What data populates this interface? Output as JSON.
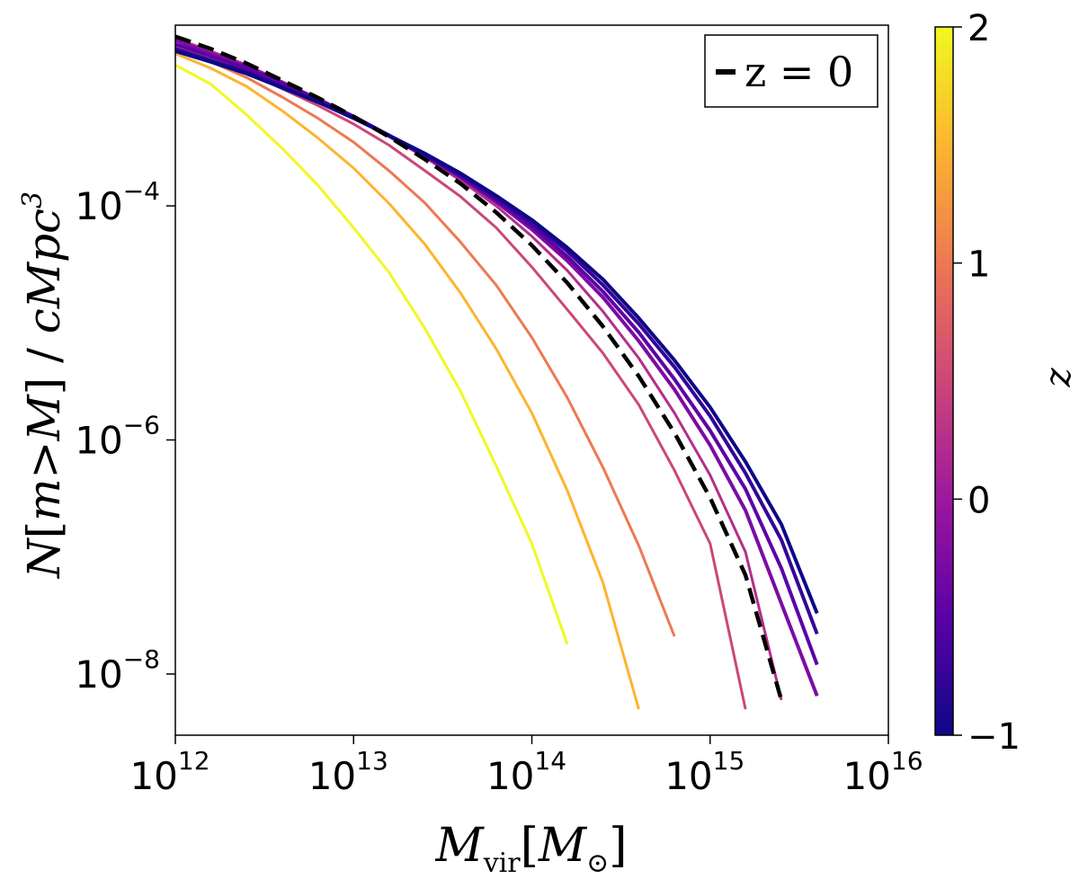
{
  "chart_data": {
    "type": "line",
    "xscale": "log",
    "yscale": "log",
    "xlim": [
      1000000000000.0,
      1e+16
    ],
    "ylim": [
      3e-09,
      0.0035
    ],
    "xlabel": "M_vir[M_⊙]",
    "ylabel": "N[m>M] / cMpc^3",
    "x_ticks": [
      {
        "value": 1000000000000.0,
        "base": "10",
        "exp": "12"
      },
      {
        "value": 10000000000000.0,
        "base": "10",
        "exp": "13"
      },
      {
        "value": 100000000000000.0,
        "base": "10",
        "exp": "14"
      },
      {
        "value": 1000000000000000.0,
        "base": "10",
        "exp": "15"
      },
      {
        "value": 1e+16,
        "base": "10",
        "exp": "16"
      }
    ],
    "y_ticks": [
      {
        "value": 0.0001,
        "base": "10",
        "exp": "−4"
      },
      {
        "value": 1e-06,
        "base": "10",
        "exp": "−6"
      },
      {
        "value": 1e-08,
        "base": "10",
        "exp": "−8"
      }
    ],
    "legend": {
      "label": "z = 0",
      "location": "top-right",
      "style": "dashed-black"
    },
    "colorbar": {
      "label": "z",
      "min": -1,
      "max": 2,
      "ticks": [
        {
          "value": 2,
          "label": "2"
        },
        {
          "value": 1,
          "label": "1"
        },
        {
          "value": 0,
          "label": "0"
        },
        {
          "value": -1,
          "label": "−1"
        }
      ],
      "colormap": [
        "#0d0887",
        "#5c01a6",
        "#9c179e",
        "#cc4778",
        "#ed7953",
        "#fdb42f",
        "#f0f921"
      ]
    },
    "series": [
      {
        "name": "z=2.0",
        "z": 2.0,
        "x": [
          1000000000000.0,
          1580000000000.0,
          2510000000000.0,
          3980000000000.0,
          6310000000000.0,
          10000000000000.0,
          15800000000000.0,
          25100000000000.0,
          39800000000000.0,
          63100000000000.0,
          100000000000000.0,
          158000000000000.0
        ],
        "y": [
          0.0016,
          0.0011,
          0.0006,
          0.00031,
          0.00015,
          6.5e-05,
          2.7e-05,
          9e-06,
          2.6e-06,
          6e-07,
          1.3e-07,
          1.8e-08
        ]
      },
      {
        "name": "z=1.5",
        "z": 1.5,
        "x": [
          1000000000000.0,
          1580000000000.0,
          2510000000000.0,
          3980000000000.0,
          6310000000000.0,
          10000000000000.0,
          15800000000000.0,
          25100000000000.0,
          39800000000000.0,
          63100000000000.0,
          100000000000000.0,
          158000000000000.0,
          251000000000000.0,
          398000000000000.0
        ],
        "y": [
          0.002,
          0.0015,
          0.00105,
          0.00065,
          0.00038,
          0.00021,
          0.000105,
          4.7e-05,
          1.8e-05,
          6e-06,
          1.7e-06,
          3.7e-07,
          6e-08,
          5e-09
        ]
      },
      {
        "name": "z=1.0",
        "z": 1.0,
        "x": [
          1000000000000.0,
          1580000000000.0,
          2510000000000.0,
          3980000000000.0,
          6310000000000.0,
          10000000000000.0,
          15800000000000.0,
          25100000000000.0,
          39800000000000.0,
          63100000000000.0,
          100000000000000.0,
          158000000000000.0,
          251000000000000.0,
          398000000000000.0,
          631000000000000.0
        ],
        "y": [
          0.0022,
          0.0017,
          0.00125,
          0.00085,
          0.00056,
          0.00035,
          0.0002,
          0.000106,
          4.9e-05,
          2.1e-05,
          7.5e-06,
          2.3e-06,
          5.8e-07,
          1.25e-07,
          2.1e-08
        ]
      },
      {
        "name": "z=0.5",
        "z": 0.5,
        "x": [
          1000000000000.0,
          1580000000000.0,
          2510000000000.0,
          3980000000000.0,
          6310000000000.0,
          10000000000000.0,
          15800000000000.0,
          25100000000000.0,
          39800000000000.0,
          63100000000000.0,
          100000000000000.0,
          158000000000000.0,
          251000000000000.0,
          398000000000000.0,
          631000000000000.0,
          1000000000000000.0,
          1580000000000000.0
        ],
        "y": [
          0.0023,
          0.0018,
          0.0014,
          0.001,
          0.00072,
          0.0005,
          0.00033,
          0.0002,
          0.00012,
          6.5e-05,
          3e-05,
          1.3e-05,
          5.5e-06,
          2e-06,
          5.5e-07,
          1.3e-07,
          5e-09
        ]
      },
      {
        "name": "z=0.25",
        "z": 0.25,
        "x": [
          1000000000000.0,
          1580000000000.0,
          2510000000000.0,
          3980000000000.0,
          6310000000000.0,
          10000000000000.0,
          15800000000000.0,
          25100000000000.0,
          39800000000000.0,
          63100000000000.0,
          100000000000000.0,
          158000000000000.0,
          251000000000000.0,
          398000000000000.0,
          631000000000000.0,
          1000000000000000.0,
          1580000000000000.0,
          2510000000000000.0
        ],
        "y": [
          0.0027,
          0.0021,
          0.0016,
          0.00115,
          0.00082,
          0.00057,
          0.00039,
          0.00026,
          0.000165,
          0.0001,
          5.5e-05,
          2.8e-05,
          1.25e-05,
          5e-06,
          1.7e-06,
          5e-07,
          1.1e-07,
          6e-09
        ]
      },
      {
        "name": "z=-0.25",
        "z": -0.25,
        "x": [
          1000000000000.0,
          1580000000000.0,
          2510000000000.0,
          3980000000000.0,
          6310000000000.0,
          10000000000000.0,
          15800000000000.0,
          25100000000000.0,
          39800000000000.0,
          63100000000000.0,
          100000000000000.0,
          158000000000000.0,
          251000000000000.0,
          398000000000000.0,
          631000000000000.0,
          1000000000000000.0,
          1580000000000000.0,
          2510000000000000.0,
          3980000000000000.0
        ],
        "y": [
          0.0026,
          0.002,
          0.00155,
          0.00113,
          0.00082,
          0.00058,
          0.0004,
          0.00027,
          0.000175,
          0.000108,
          6.3e-05,
          3.4e-05,
          1.65e-05,
          7e-06,
          2.7e-06,
          9e-07,
          2.5e-07,
          4e-08,
          6.5e-09
        ]
      },
      {
        "name": "z=-0.5",
        "z": -0.5,
        "x": [
          1000000000000.0,
          1580000000000.0,
          2510000000000.0,
          3980000000000.0,
          6310000000000.0,
          10000000000000.0,
          15800000000000.0,
          25100000000000.0,
          39800000000000.0,
          63100000000000.0,
          100000000000000.0,
          158000000000000.0,
          251000000000000.0,
          398000000000000.0,
          631000000000000.0,
          1000000000000000.0,
          1580000000000000.0,
          2510000000000000.0,
          3980000000000000.0
        ],
        "y": [
          0.0024,
          0.0019,
          0.0015,
          0.0011,
          0.00081,
          0.00058,
          0.0004,
          0.00027,
          0.00018,
          0.000112,
          6.7e-05,
          3.7e-05,
          1.85e-05,
          8.3e-06,
          3.3e-06,
          1.2e-06,
          3.8e-07,
          8e-08,
          1.2e-08
        ]
      },
      {
        "name": "z=-0.75",
        "z": -0.75,
        "x": [
          1000000000000.0,
          1580000000000.0,
          2510000000000.0,
          3980000000000.0,
          6310000000000.0,
          10000000000000.0,
          15800000000000.0,
          25100000000000.0,
          39800000000000.0,
          63100000000000.0,
          100000000000000.0,
          158000000000000.0,
          251000000000000.0,
          398000000000000.0,
          631000000000000.0,
          1000000000000000.0,
          1580000000000000.0,
          2510000000000000.0,
          3980000000000000.0
        ],
        "y": [
          0.0022,
          0.00175,
          0.0014,
          0.00105,
          0.00078,
          0.00057,
          0.0004,
          0.00027,
          0.000185,
          0.000117,
          7.2e-05,
          4.1e-05,
          2.1e-05,
          9.8e-06,
          4.2e-06,
          1.6e-06,
          5.2e-07,
          1.4e-07,
          2.2e-08
        ]
      },
      {
        "name": "z=-1.0",
        "z": -1.0,
        "x": [
          1000000000000.0,
          1580000000000.0,
          2510000000000.0,
          3980000000000.0,
          6310000000000.0,
          10000000000000.0,
          15800000000000.0,
          25100000000000.0,
          39800000000000.0,
          63100000000000.0,
          100000000000000.0,
          158000000000000.0,
          251000000000000.0,
          398000000000000.0,
          631000000000000.0,
          1000000000000000.0,
          1580000000000000.0,
          2510000000000000.0,
          3980000000000000.0
        ],
        "y": [
          0.0021,
          0.0017,
          0.00135,
          0.00102,
          0.00077,
          0.00056,
          0.0004,
          0.00028,
          0.00019,
          0.000122,
          7.6e-05,
          4.4e-05,
          2.35e-05,
          1.1e-05,
          4.8e-06,
          1.9e-06,
          6.5e-07,
          1.9e-07,
          3.3e-08
        ]
      }
    ],
    "reference": {
      "name": "z=0",
      "x": [
        1000000000000.0,
        1580000000000.0,
        2510000000000.0,
        3980000000000.0,
        6310000000000.0,
        10000000000000.0,
        15800000000000.0,
        25100000000000.0,
        39800000000000.0,
        63100000000000.0,
        100000000000000.0,
        158000000000000.0,
        251000000000000.0,
        398000000000000.0,
        631000000000000.0,
        1000000000000000.0,
        1580000000000000.0,
        2510000000000000.0
      ],
      "y": [
        0.0028,
        0.0022,
        0.00165,
        0.00118,
        0.00084,
        0.00058,
        0.00039,
        0.00025,
        0.000155,
        8.8e-05,
        4.6e-05,
        2.2e-05,
        9.3e-06,
        3.5e-06,
        1.15e-06,
        3.2e-07,
        7e-08,
        6e-09
      ]
    }
  }
}
